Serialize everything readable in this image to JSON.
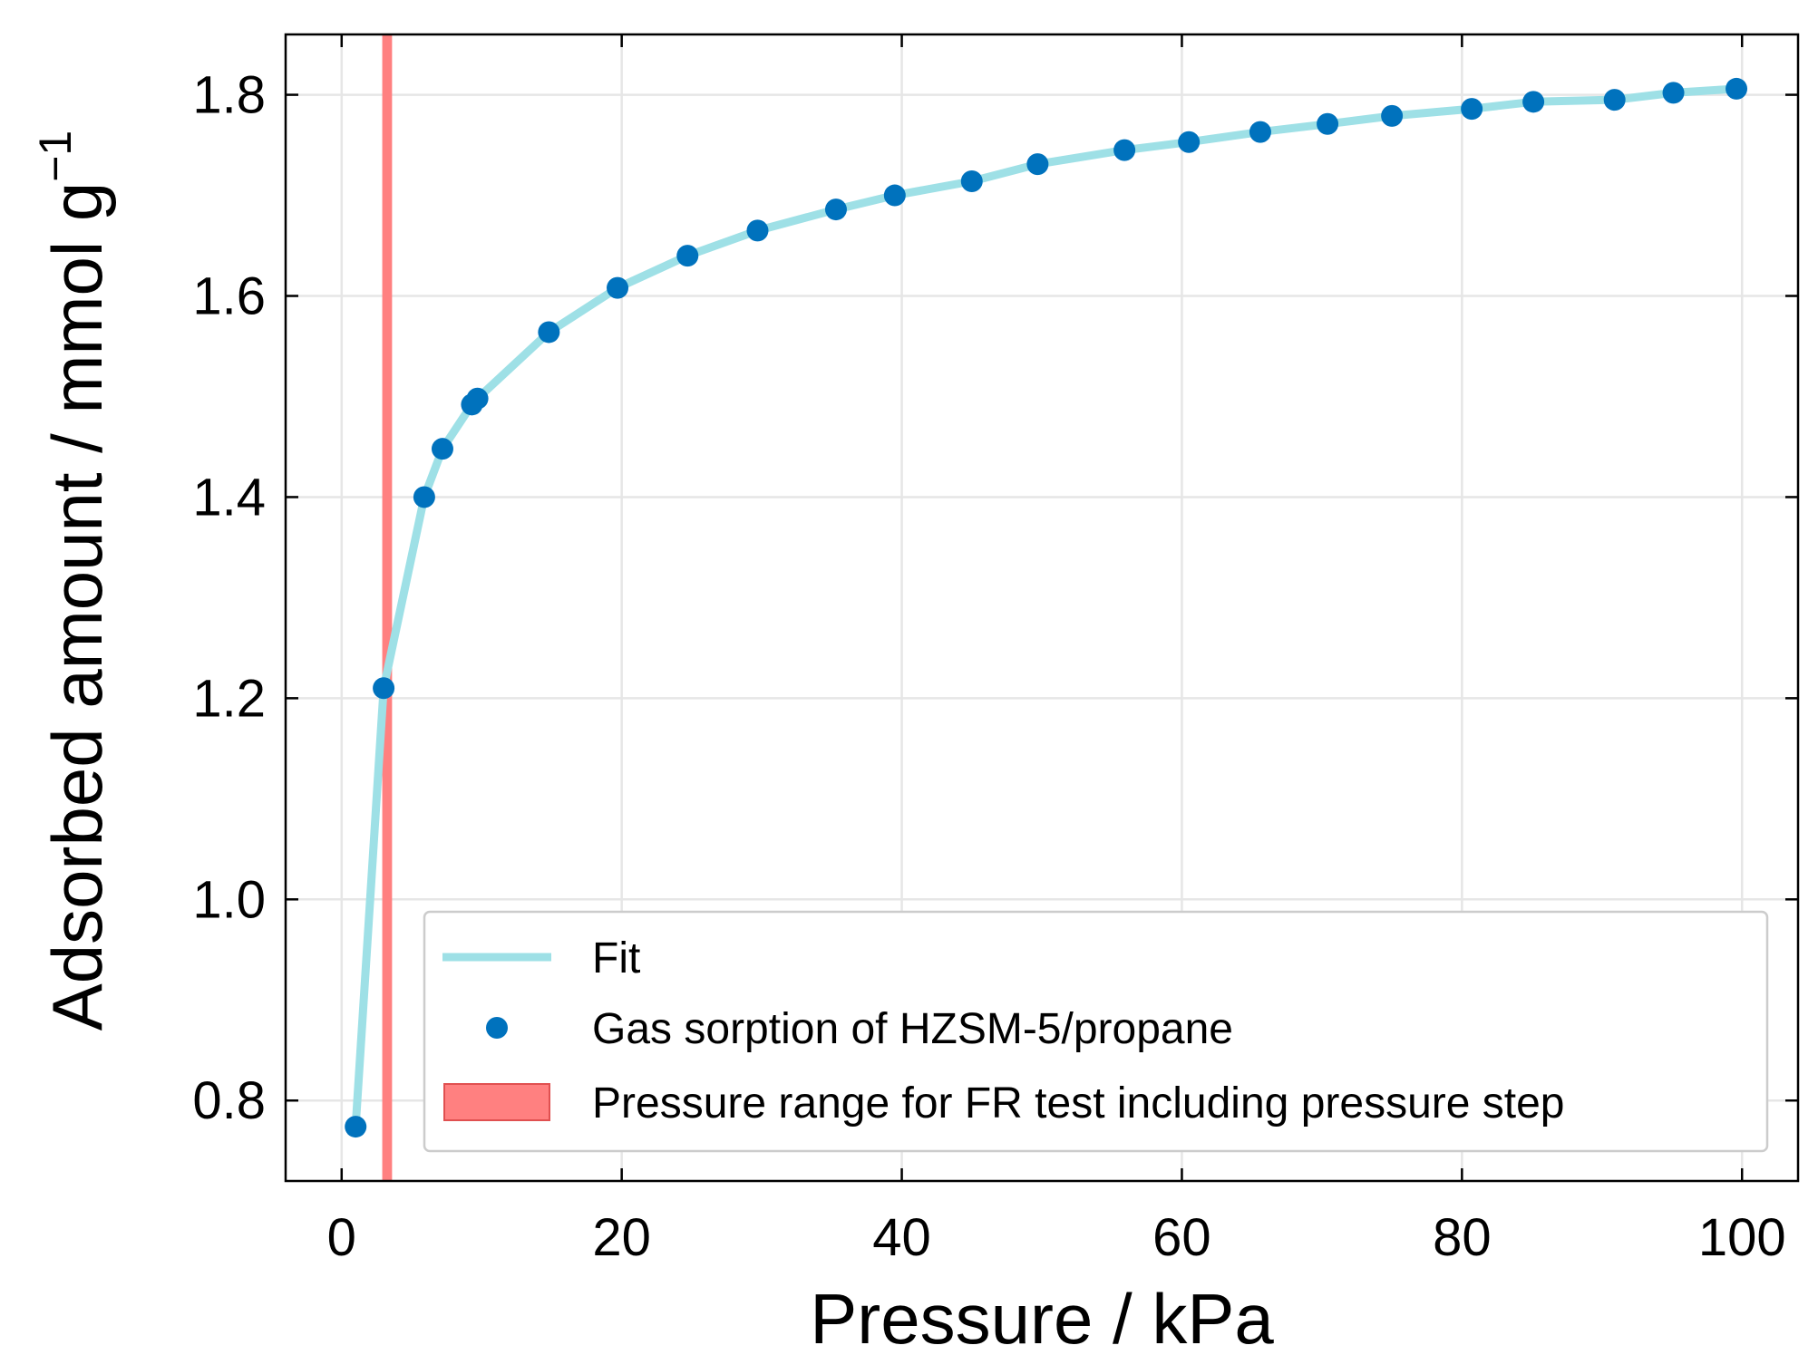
{
  "chart_data": {
    "type": "scatter",
    "xlabel": "Pressure / kPa",
    "ylabel_main": "Adsorbed amount / mmol g",
    "ylabel_sup": "−1",
    "xlim": [
      -4,
      104
    ],
    "ylim": [
      0.72,
      1.86
    ],
    "xticks": [
      0,
      20,
      40,
      60,
      80,
      100
    ],
    "yticks": [
      0.8,
      1.0,
      1.2,
      1.4,
      1.6,
      1.8
    ],
    "ytick_labels": [
      "0.8",
      "1.0",
      "1.2",
      "1.4",
      "1.6",
      "1.8"
    ],
    "grid": true,
    "legend_position": "lower-right",
    "shaded_region": {
      "label": "Pressure range for FR test including pressure step",
      "x_range": [
        2.9,
        3.6
      ],
      "color": "#ff8080"
    },
    "series": [
      {
        "name": "Fit",
        "kind": "line",
        "color": "#9ee0e6",
        "x": [
          1.0,
          3.0,
          5.9,
          7.2,
          9.3,
          9.7,
          14.8,
          19.7,
          24.7,
          29.7,
          35.3,
          39.5,
          45.0,
          49.7,
          55.9,
          60.5,
          65.6,
          70.4,
          75.0,
          80.7,
          85.1,
          90.9,
          95.1,
          99.6
        ],
        "y": [
          0.774,
          1.21,
          1.4,
          1.448,
          1.492,
          1.498,
          1.564,
          1.608,
          1.64,
          1.665,
          1.686,
          1.7,
          1.714,
          1.731,
          1.745,
          1.753,
          1.763,
          1.771,
          1.779,
          1.786,
          1.793,
          1.795,
          1.802,
          1.806
        ]
      },
      {
        "name": "Gas sorption of HZSM-5/propane",
        "kind": "scatter",
        "color": "#0072bd",
        "x": [
          1.0,
          3.0,
          5.9,
          7.2,
          9.3,
          9.7,
          14.8,
          19.7,
          24.7,
          29.7,
          35.3,
          39.5,
          45.0,
          49.7,
          55.9,
          60.5,
          65.6,
          70.4,
          75.0,
          80.7,
          85.1,
          90.9,
          95.1,
          99.6
        ],
        "y": [
          0.774,
          1.21,
          1.4,
          1.448,
          1.492,
          1.498,
          1.564,
          1.608,
          1.64,
          1.665,
          1.686,
          1.7,
          1.714,
          1.731,
          1.745,
          1.753,
          1.763,
          1.771,
          1.779,
          1.786,
          1.793,
          1.795,
          1.802,
          1.806
        ]
      }
    ]
  }
}
